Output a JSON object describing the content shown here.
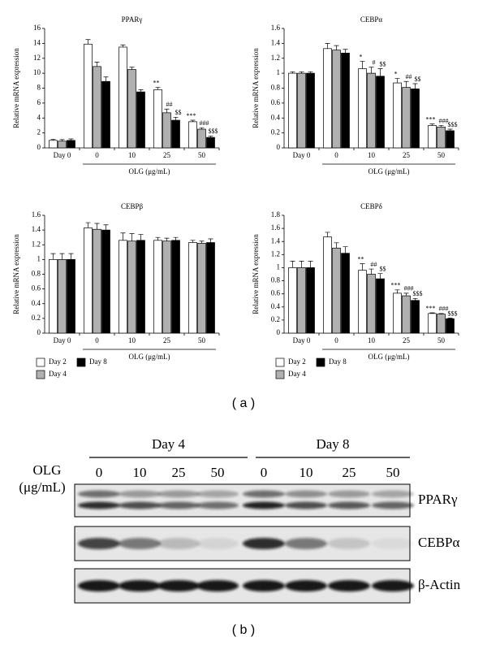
{
  "chart_data": [
    {
      "type": "bar",
      "title": "PPARγ",
      "y_label": "Relative mRNA expression",
      "categories": [
        "Day 0",
        "0",
        "10",
        "25",
        "50"
      ],
      "x_label": "OLG (μg/mL)",
      "ylim": [
        0,
        16
      ],
      "yticks": [
        0,
        2,
        4,
        6,
        8,
        10,
        12,
        14,
        16
      ],
      "series": [
        {
          "color": "#ffffff",
          "values": [
            1,
            13.9,
            13.5,
            7.8,
            3.5
          ],
          "errors": [
            0.15,
            0.6,
            0.3,
            0.3,
            0.2
          ],
          "significance": [
            null,
            null,
            null,
            "**",
            "***"
          ]
        },
        {
          "color": "#b0b0b0",
          "values": [
            0.9,
            10.9,
            10.5,
            4.7,
            2.5
          ],
          "errors": [
            0.2,
            0.6,
            0.3,
            0.5,
            0.2
          ],
          "significance": [
            null,
            null,
            null,
            "##",
            "###"
          ]
        },
        {
          "color": "#000000",
          "values": [
            1,
            8.9,
            7.5,
            3.7,
            1.4
          ],
          "errors": [
            0.2,
            0.6,
            0.3,
            0.4,
            0.2
          ],
          "significance": [
            null,
            null,
            null,
            "$$",
            "$$$"
          ]
        }
      ]
    },
    {
      "type": "bar",
      "title": "CEBPα",
      "y_label": "Relative mRNA expression",
      "categories": [
        "Day 0",
        "0",
        "10",
        "25",
        "50"
      ],
      "x_label": "OLG (μg/mL)",
      "ylim": [
        0,
        1.6
      ],
      "yticks": [
        0,
        0.2,
        0.4,
        0.6,
        0.8,
        1,
        1.2,
        1.4,
        1.6
      ],
      "series": [
        {
          "color": "#ffffff",
          "values": [
            1,
            1.33,
            1.06,
            0.87,
            0.3
          ],
          "errors": [
            0.02,
            0.07,
            0.1,
            0.06,
            0.02
          ],
          "significance": [
            null,
            null,
            "*",
            "*",
            "***"
          ]
        },
        {
          "color": "#b0b0b0",
          "values": [
            1,
            1.31,
            1.0,
            0.81,
            0.28
          ],
          "errors": [
            0.02,
            0.06,
            0.08,
            0.08,
            0.02
          ],
          "significance": [
            null,
            null,
            "#",
            "##",
            "###"
          ]
        },
        {
          "color": "#000000",
          "values": [
            1,
            1.27,
            0.96,
            0.79,
            0.23
          ],
          "errors": [
            0.02,
            0.05,
            0.1,
            0.07,
            0.02
          ],
          "significance": [
            null,
            null,
            "$$",
            "$$",
            "$$$"
          ]
        }
      ]
    },
    {
      "type": "bar",
      "title": "CEBPβ",
      "y_label": "Relative mRNA expression",
      "categories": [
        "Day 0",
        "0",
        "10",
        "25",
        "50"
      ],
      "x_label": "OLG (μg/mL)",
      "ylim": [
        0,
        1.6
      ],
      "yticks": [
        0,
        0.2,
        0.4,
        0.6,
        0.8,
        1,
        1.2,
        1.4,
        1.6
      ],
      "legend": "below",
      "series": [
        {
          "name": "Day 2",
          "color": "#ffffff",
          "values": [
            1,
            1.43,
            1.26,
            1.26,
            1.23
          ],
          "errors": [
            0.08,
            0.07,
            0.1,
            0.04,
            0.03
          ]
        },
        {
          "name": "Day 4",
          "color": "#b0b0b0",
          "values": [
            1,
            1.41,
            1.25,
            1.25,
            1.22
          ],
          "errors": [
            0.08,
            0.08,
            0.1,
            0.04,
            0.03
          ]
        },
        {
          "name": "Day 8",
          "color": "#000000",
          "values": [
            1,
            1.4,
            1.26,
            1.26,
            1.23
          ],
          "errors": [
            0.08,
            0.07,
            0.08,
            0.04,
            0.05
          ]
        }
      ]
    },
    {
      "type": "bar",
      "title": "CEBPδ",
      "y_label": "Relative mRNA expression",
      "categories": [
        "Day 0",
        "0",
        "10",
        "25",
        "50"
      ],
      "x_label": "OLG (μg/mL)",
      "ylim": [
        0,
        1.8
      ],
      "yticks": [
        0,
        0.2,
        0.4,
        0.6,
        0.8,
        1,
        1.2,
        1.4,
        1.6,
        1.8
      ],
      "legend": "below",
      "series": [
        {
          "name": "Day 2",
          "color": "#ffffff",
          "values": [
            1,
            1.47,
            0.96,
            0.61,
            0.3
          ],
          "errors": [
            0.1,
            0.07,
            0.1,
            0.05,
            0.01
          ],
          "significance": [
            null,
            null,
            "**",
            "***",
            "***"
          ]
        },
        {
          "name": "Day 4",
          "color": "#b0b0b0",
          "values": [
            1,
            1.3,
            0.9,
            0.57,
            0.29
          ],
          "errors": [
            0.1,
            0.08,
            0.08,
            0.04,
            0.01
          ],
          "significance": [
            null,
            null,
            "##",
            "###",
            "###"
          ]
        },
        {
          "name": "Day 8",
          "color": "#000000",
          "values": [
            1,
            1.22,
            0.83,
            0.5,
            0.22
          ],
          "errors": [
            0.1,
            0.1,
            0.08,
            0.03,
            0.01
          ],
          "significance": [
            null,
            null,
            "$$",
            "$$$",
            "$$$"
          ]
        }
      ]
    }
  ],
  "panels": [
    "( a )",
    "( b )"
  ],
  "blot": {
    "days": [
      "Day 4",
      "Day 8"
    ],
    "treatment_label": "OLG",
    "treatment_unit": "(μg/mL)",
    "doses": [
      "0",
      "10",
      "25",
      "50"
    ],
    "proteins": [
      "PPARγ",
      "CEBPα",
      "β-Actin"
    ]
  }
}
